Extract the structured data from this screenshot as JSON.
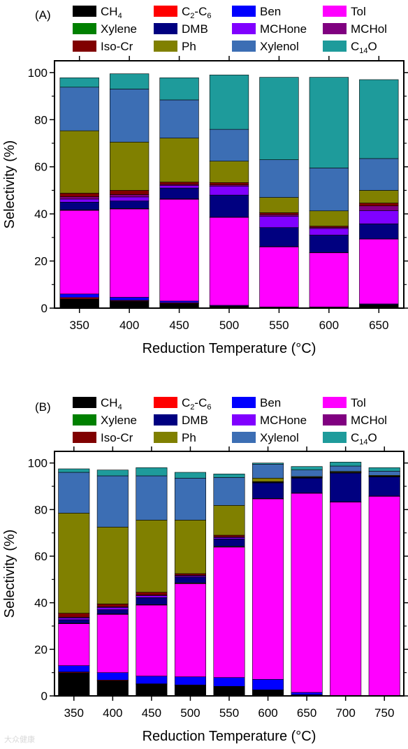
{
  "chart_data": [
    {
      "type": "bar",
      "stacked": true,
      "panel_label": "(A)",
      "xlabel": "Reduction Temperature (°C)",
      "ylabel": "Selectivity (%)",
      "ylim": [
        0,
        105
      ],
      "yticks": [
        0,
        20,
        40,
        60,
        80,
        100
      ],
      "categories": [
        "350",
        "400",
        "450",
        "500",
        "550",
        "600",
        "650"
      ],
      "series": [
        {
          "name": "CH4",
          "color": "#000000",
          "values": [
            4.0,
            3.0,
            2.0,
            0.8,
            0.5,
            0.5,
            1.5
          ]
        },
        {
          "name": "C2-C6",
          "color": "#ff0000",
          "values": [
            0.5,
            0.3,
            0.3,
            0.1,
            0,
            0,
            0
          ]
        },
        {
          "name": "Ben",
          "color": "#0000ff",
          "values": [
            1.5,
            1.3,
            0.7,
            0.3,
            0,
            0,
            0.3
          ]
        },
        {
          "name": "Tol",
          "color": "#ff00ff",
          "values": [
            35.5,
            37.5,
            43.2,
            37.3,
            25.5,
            23.0,
            27.5
          ]
        },
        {
          "name": "Xylene",
          "color": "#008000",
          "values": [
            0.2,
            0.2,
            0.2,
            0.1,
            0.1,
            0.1,
            0.1
          ]
        },
        {
          "name": "DMB",
          "color": "#000080",
          "values": [
            3.3,
            3.2,
            4.6,
            9.4,
            8.1,
            7.4,
            6.4
          ]
        },
        {
          "name": "MCHone",
          "color": "#8000ff",
          "values": [
            1.3,
            1.7,
            1.0,
            3.8,
            4.8,
            2.8,
            5.6
          ]
        },
        {
          "name": "MCHol",
          "color": "#800080",
          "values": [
            1.0,
            1.0,
            0.5,
            0.5,
            0.7,
            0.5,
            2.0
          ]
        },
        {
          "name": "Iso-Cr",
          "color": "#800000",
          "values": [
            1.5,
            1.8,
            1.0,
            1.0,
            0.8,
            0.5,
            1.2
          ]
        },
        {
          "name": "Ph",
          "color": "#808000",
          "values": [
            26.5,
            20.5,
            18.7,
            9.1,
            6.5,
            6.5,
            5.4
          ]
        },
        {
          "name": "Xylenol",
          "color": "#3c6eb4",
          "values": [
            18.5,
            22.5,
            16.2,
            13.5,
            16.0,
            18.2,
            13.5
          ]
        },
        {
          "name": "C14O",
          "color": "#1e9b9b",
          "values": [
            4.0,
            6.5,
            9.4,
            23.1,
            35.0,
            38.5,
            33.5
          ]
        }
      ]
    },
    {
      "type": "bar",
      "stacked": true,
      "panel_label": "(B)",
      "xlabel": "Reduction Temperature (°C)",
      "ylabel": "Selectivity (%)",
      "ylim": [
        0,
        105
      ],
      "yticks": [
        0,
        20,
        40,
        60,
        80,
        100
      ],
      "categories": [
        "350",
        "400",
        "450",
        "500",
        "550",
        "600",
        "650",
        "700",
        "750"
      ],
      "series": [
        {
          "name": "CH4",
          "color": "#000000",
          "values": [
            10.0,
            6.5,
            5.0,
            4.5,
            4.0,
            2.5,
            0.5,
            0.2,
            0.2
          ]
        },
        {
          "name": "C2-C6",
          "color": "#ff0000",
          "values": [
            0.3,
            0.3,
            0.2,
            0.2,
            0.1,
            0.1,
            0,
            0,
            0
          ]
        },
        {
          "name": "Ben",
          "color": "#0000ff",
          "values": [
            2.7,
            3.2,
            3.3,
            3.5,
            3.8,
            4.5,
            1.0,
            0,
            0
          ]
        },
        {
          "name": "Tol",
          "color": "#ff00ff",
          "values": [
            18.0,
            25.0,
            30.5,
            40.0,
            56.0,
            77.5,
            85.5,
            83.0,
            85.5
          ]
        },
        {
          "name": "Xylene",
          "color": "#008000",
          "values": [
            0.2,
            0.2,
            0.2,
            0.3,
            0.3,
            0.2,
            0.1,
            0.1,
            0.1
          ]
        },
        {
          "name": "DMB",
          "color": "#000080",
          "values": [
            1.5,
            1.8,
            3.0,
            2.5,
            3.2,
            6.7,
            6.4,
            12.4,
            8.2
          ]
        },
        {
          "name": "MCHone",
          "color": "#8000ff",
          "values": [
            0.8,
            1.0,
            0.8,
            0.5,
            0.6,
            0.2,
            0.2,
            0.2,
            0.2
          ]
        },
        {
          "name": "MCHol",
          "color": "#800080",
          "values": [
            0.3,
            0.3,
            0.3,
            0.3,
            0.3,
            0.1,
            0.1,
            0.1,
            0.1
          ]
        },
        {
          "name": "Iso-Cr",
          "color": "#800000",
          "values": [
            1.7,
            1.2,
            1.2,
            0.7,
            0.7,
            0.2,
            0.1,
            0.1,
            0.1
          ]
        },
        {
          "name": "Ph",
          "color": "#808000",
          "values": [
            43.0,
            33.0,
            31.0,
            23.0,
            12.8,
            1.5,
            0.3,
            0.3,
            0.3
          ]
        },
        {
          "name": "Xylenol",
          "color": "#3c6eb4",
          "values": [
            17.5,
            22.0,
            19.0,
            18.0,
            12.0,
            6.0,
            2.8,
            2.3,
            1.8
          ]
        },
        {
          "name": "C14O",
          "color": "#1e9b9b",
          "values": [
            1.5,
            2.5,
            3.5,
            2.5,
            1.5,
            0.5,
            1.5,
            1.7,
            1.5
          ]
        }
      ]
    }
  ],
  "watermark": "大众健康"
}
